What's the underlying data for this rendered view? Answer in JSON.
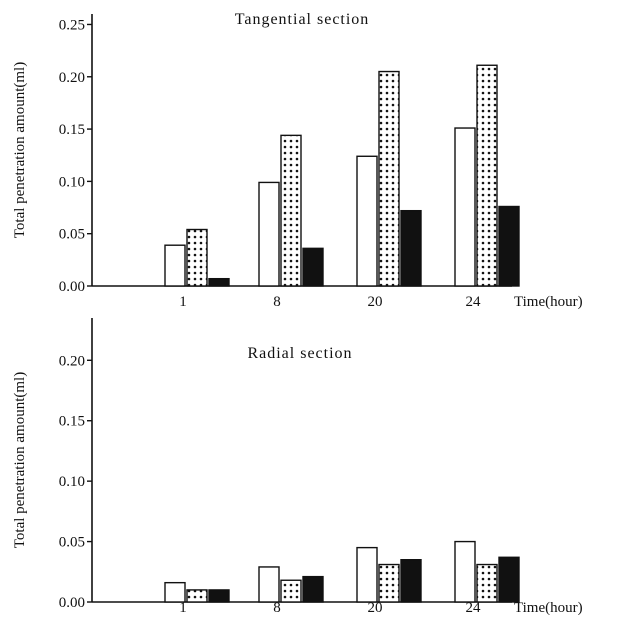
{
  "chart_data": [
    {
      "type": "bar",
      "title": "Tangential section",
      "xlabel": "Time(hour)",
      "ylabel": "Total penetration amount(ml)",
      "categories": [
        "1",
        "8",
        "20",
        "24"
      ],
      "yticks": [
        "0.00",
        "0.05",
        "0.10",
        "0.15",
        "0.20",
        "0.25"
      ],
      "ylim": [
        0,
        0.26
      ],
      "grid": false,
      "legend": "none",
      "series": [
        {
          "pattern": "white",
          "values": [
            0.039,
            0.099,
            0.124,
            0.151
          ]
        },
        {
          "pattern": "dotted",
          "values": [
            0.054,
            0.144,
            0.205,
            0.211
          ]
        },
        {
          "pattern": "black",
          "values": [
            0.007,
            0.036,
            0.072,
            0.076
          ]
        }
      ]
    },
    {
      "type": "bar",
      "title": "Radial section",
      "xlabel": "Time(hour)",
      "ylabel": "Total penetration amount(ml)",
      "categories": [
        "1",
        "8",
        "20",
        "24"
      ],
      "yticks": [
        "0.00",
        "0.05",
        "0.10",
        "0.15",
        "0.20"
      ],
      "ylim": [
        0,
        0.235
      ],
      "grid": false,
      "legend": "none",
      "series": [
        {
          "pattern": "white",
          "values": [
            0.016,
            0.029,
            0.045,
            0.05
          ]
        },
        {
          "pattern": "dotted",
          "values": [
            0.01,
            0.018,
            0.031,
            0.031
          ]
        },
        {
          "pattern": "black",
          "values": [
            0.01,
            0.021,
            0.035,
            0.037
          ]
        }
      ]
    }
  ]
}
